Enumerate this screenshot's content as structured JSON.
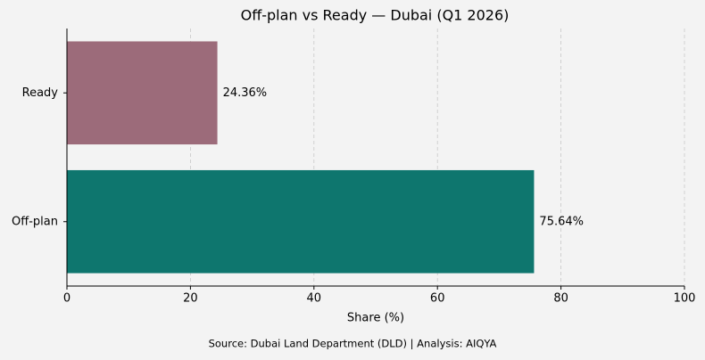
{
  "chart_data": {
    "type": "bar",
    "orientation": "horizontal",
    "title": "Off-plan vs Ready — Dubai (Q1 2026)",
    "x_label": "Share (%)",
    "source": "Source: Dubai Land Department (DLD) | Analysis: AIQYA",
    "categories": [
      "Ready",
      "Off-plan"
    ],
    "values": [
      24.36,
      75.64
    ],
    "value_labels": [
      "24.36%",
      "75.64%"
    ],
    "colors": [
      "#9c6b7a",
      "#0e766e"
    ],
    "xlim": [
      0,
      100
    ],
    "xticks": [
      0,
      20,
      40,
      60,
      80,
      100
    ],
    "grid": true
  }
}
